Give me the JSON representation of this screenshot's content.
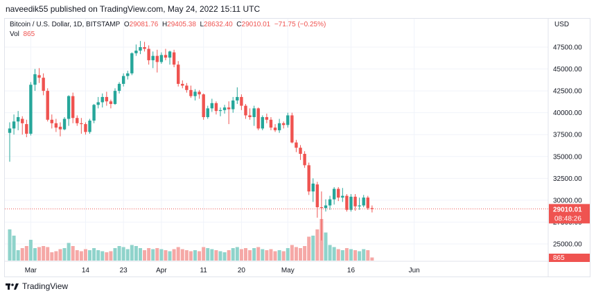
{
  "header": {
    "published_text": "naveedik55 published on TradingView.com, May 24, 2022 15:11 UTC"
  },
  "legend": {
    "symbol": "Bitcoin / U.S. Dollar, 1D, BITSTAMP",
    "open_label": "O",
    "open": "29081.76",
    "high_label": "H",
    "high": "29405.38",
    "low_label": "L",
    "low": "28632.40",
    "close_label": "C",
    "close": "29010.01",
    "change": "−71.75 (−0.25%)",
    "vol_label": "Vol",
    "vol_value": "865"
  },
  "price_axis": {
    "currency": "USD"
  },
  "price_tag": {
    "price": "29010.01",
    "countdown": "08:48:26"
  },
  "volume_tag": {
    "value": "865"
  },
  "footer": {
    "brand": "TradingView"
  },
  "colors": {
    "up": "#26a69a",
    "down": "#ef5350",
    "up_vol": "#8fd3cb",
    "down_vol": "#f5a8a6",
    "grid": "#f0f3fa"
  },
  "chart_data": {
    "type": "candlestick",
    "y_ticks": [
      "47500.00",
      "45000.00",
      "42500.00",
      "40000.00",
      "37500.00",
      "35000.00",
      "32500.00",
      "30000.00",
      "27500.00",
      "25000.00"
    ],
    "x_ticks": [
      {
        "label": "Mar",
        "index": 5
      },
      {
        "label": "14",
        "index": 18
      },
      {
        "label": "23",
        "index": 27
      },
      {
        "label": "Apr",
        "index": 36
      },
      {
        "label": "11",
        "index": 46
      },
      {
        "label": "20",
        "index": 55
      },
      {
        "label": "May",
        "index": 66
      },
      {
        "label": "16",
        "index": 81
      },
      {
        "label": "Jun",
        "index": 96
      }
    ],
    "candles": [
      {
        "o": 37700,
        "h": 38900,
        "l": 34400,
        "c": 38200,
        "v": 30
      },
      {
        "o": 38200,
        "h": 39800,
        "l": 37500,
        "c": 39000,
        "v": 24
      },
      {
        "o": 39000,
        "h": 40200,
        "l": 38000,
        "c": 39500,
        "v": 10
      },
      {
        "o": 39300,
        "h": 39600,
        "l": 37500,
        "c": 38800,
        "v": 12
      },
      {
        "o": 38700,
        "h": 39200,
        "l": 37200,
        "c": 37600,
        "v": 14
      },
      {
        "o": 37600,
        "h": 43500,
        "l": 37400,
        "c": 43200,
        "v": 20
      },
      {
        "o": 43200,
        "h": 45000,
        "l": 42500,
        "c": 44400,
        "v": 12
      },
      {
        "o": 44300,
        "h": 45100,
        "l": 43400,
        "c": 44000,
        "v": 13
      },
      {
        "o": 44000,
        "h": 44500,
        "l": 42000,
        "c": 42500,
        "v": 14
      },
      {
        "o": 42500,
        "h": 42800,
        "l": 39000,
        "c": 39200,
        "v": 13
      },
      {
        "o": 39200,
        "h": 39800,
        "l": 38200,
        "c": 38800,
        "v": 8
      },
      {
        "o": 38800,
        "h": 39300,
        "l": 37800,
        "c": 38300,
        "v": 9
      },
      {
        "o": 38400,
        "h": 38900,
        "l": 37300,
        "c": 38100,
        "v": 11
      },
      {
        "o": 38100,
        "h": 39500,
        "l": 38000,
        "c": 39300,
        "v": 12
      },
      {
        "o": 39300,
        "h": 42000,
        "l": 38500,
        "c": 41900,
        "v": 17
      },
      {
        "o": 41900,
        "h": 42300,
        "l": 38800,
        "c": 39400,
        "v": 14
      },
      {
        "o": 39400,
        "h": 39700,
        "l": 38500,
        "c": 38800,
        "v": 10
      },
      {
        "o": 38800,
        "h": 39400,
        "l": 37600,
        "c": 38700,
        "v": 9
      },
      {
        "o": 38700,
        "h": 38900,
        "l": 37500,
        "c": 37800,
        "v": 11
      },
      {
        "o": 37800,
        "h": 39300,
        "l": 37600,
        "c": 39100,
        "v": 10
      },
      {
        "o": 39100,
        "h": 41000,
        "l": 38800,
        "c": 40900,
        "v": 12
      },
      {
        "o": 40900,
        "h": 41800,
        "l": 40500,
        "c": 41200,
        "v": 10
      },
      {
        "o": 41200,
        "h": 42200,
        "l": 40600,
        "c": 41800,
        "v": 9
      },
      {
        "o": 41800,
        "h": 42400,
        "l": 40800,
        "c": 41300,
        "v": 8
      },
      {
        "o": 41300,
        "h": 41500,
        "l": 40500,
        "c": 41000,
        "v": 9
      },
      {
        "o": 41000,
        "h": 42800,
        "l": 40900,
        "c": 42500,
        "v": 12
      },
      {
        "o": 42500,
        "h": 43500,
        "l": 42200,
        "c": 43300,
        "v": 14
      },
      {
        "o": 43300,
        "h": 44500,
        "l": 43000,
        "c": 44200,
        "v": 13
      },
      {
        "o": 44200,
        "h": 44800,
        "l": 43800,
        "c": 44500,
        "v": 11
      },
      {
        "o": 44500,
        "h": 46900,
        "l": 44300,
        "c": 46800,
        "v": 15
      },
      {
        "o": 46800,
        "h": 47800,
        "l": 46500,
        "c": 47100,
        "v": 14
      },
      {
        "o": 47100,
        "h": 48200,
        "l": 46700,
        "c": 47500,
        "v": 12
      },
      {
        "o": 47500,
        "h": 48100,
        "l": 47000,
        "c": 47300,
        "v": 10
      },
      {
        "o": 47300,
        "h": 47700,
        "l": 45500,
        "c": 46000,
        "v": 12
      },
      {
        "o": 46000,
        "h": 47000,
        "l": 45100,
        "c": 46500,
        "v": 11
      },
      {
        "o": 46500,
        "h": 47200,
        "l": 44600,
        "c": 45800,
        "v": 12
      },
      {
        "o": 45800,
        "h": 46900,
        "l": 45600,
        "c": 46600,
        "v": 11
      },
      {
        "o": 46600,
        "h": 47300,
        "l": 46000,
        "c": 46300,
        "v": 10
      },
      {
        "o": 46300,
        "h": 47100,
        "l": 45500,
        "c": 47000,
        "v": 9
      },
      {
        "o": 46900,
        "h": 47200,
        "l": 45200,
        "c": 45500,
        "v": 11
      },
      {
        "o": 45500,
        "h": 45900,
        "l": 43000,
        "c": 43300,
        "v": 13
      },
      {
        "o": 43300,
        "h": 43700,
        "l": 42800,
        "c": 43100,
        "v": 11
      },
      {
        "o": 43100,
        "h": 43400,
        "l": 42300,
        "c": 42600,
        "v": 10
      },
      {
        "o": 42600,
        "h": 43100,
        "l": 41700,
        "c": 41900,
        "v": 9
      },
      {
        "o": 41900,
        "h": 42700,
        "l": 41400,
        "c": 42400,
        "v": 10
      },
      {
        "o": 42400,
        "h": 42600,
        "l": 41600,
        "c": 42100,
        "v": 9
      },
      {
        "o": 42100,
        "h": 42200,
        "l": 39200,
        "c": 39500,
        "v": 13
      },
      {
        "o": 39500,
        "h": 40800,
        "l": 39300,
        "c": 40500,
        "v": 12
      },
      {
        "o": 40500,
        "h": 41600,
        "l": 40100,
        "c": 41100,
        "v": 11
      },
      {
        "o": 41100,
        "h": 41300,
        "l": 39800,
        "c": 40200,
        "v": 10
      },
      {
        "o": 40200,
        "h": 40600,
        "l": 39600,
        "c": 40300,
        "v": 9
      },
      {
        "o": 40300,
        "h": 40900,
        "l": 39900,
        "c": 40600,
        "v": 8
      },
      {
        "o": 40600,
        "h": 41300,
        "l": 38700,
        "c": 40400,
        "v": 10
      },
      {
        "o": 40400,
        "h": 41800,
        "l": 40000,
        "c": 41400,
        "v": 12
      },
      {
        "o": 41400,
        "h": 42900,
        "l": 41000,
        "c": 41800,
        "v": 13
      },
      {
        "o": 41800,
        "h": 42100,
        "l": 40300,
        "c": 40800,
        "v": 11
      },
      {
        "o": 40800,
        "h": 41000,
        "l": 39300,
        "c": 39700,
        "v": 12
      },
      {
        "o": 39700,
        "h": 40500,
        "l": 39200,
        "c": 39500,
        "v": 10
      },
      {
        "o": 39500,
        "h": 40800,
        "l": 38500,
        "c": 40500,
        "v": 12
      },
      {
        "o": 40500,
        "h": 40600,
        "l": 38000,
        "c": 38200,
        "v": 13
      },
      {
        "o": 38200,
        "h": 39700,
        "l": 38000,
        "c": 39500,
        "v": 11
      },
      {
        "o": 39500,
        "h": 39900,
        "l": 38800,
        "c": 39200,
        "v": 10
      },
      {
        "o": 39200,
        "h": 39500,
        "l": 38000,
        "c": 38300,
        "v": 11
      },
      {
        "o": 38300,
        "h": 38700,
        "l": 37800,
        "c": 38000,
        "v": 9
      },
      {
        "o": 38000,
        "h": 39300,
        "l": 37700,
        "c": 38800,
        "v": 10
      },
      {
        "o": 38800,
        "h": 39000,
        "l": 38200,
        "c": 38600,
        "v": 9
      },
      {
        "o": 38600,
        "h": 40000,
        "l": 38300,
        "c": 39700,
        "v": 12
      },
      {
        "o": 39700,
        "h": 40000,
        "l": 36500,
        "c": 36600,
        "v": 15
      },
      {
        "o": 36600,
        "h": 36900,
        "l": 35500,
        "c": 36000,
        "v": 13
      },
      {
        "o": 36000,
        "h": 36300,
        "l": 34600,
        "c": 35300,
        "v": 12
      },
      {
        "o": 35300,
        "h": 35600,
        "l": 33700,
        "c": 34000,
        "v": 14
      },
      {
        "o": 34000,
        "h": 34300,
        "l": 30600,
        "c": 31000,
        "v": 23
      },
      {
        "o": 31000,
        "h": 32500,
        "l": 29800,
        "c": 31900,
        "v": 24
      },
      {
        "o": 31800,
        "h": 32100,
        "l": 28000,
        "c": 29200,
        "v": 30
      },
      {
        "o": 29200,
        "h": 31000,
        "l": 25400,
        "c": 29100,
        "v": 40
      },
      {
        "o": 29100,
        "h": 30100,
        "l": 28700,
        "c": 29400,
        "v": 27
      },
      {
        "o": 29400,
        "h": 30500,
        "l": 28900,
        "c": 30100,
        "v": 15
      },
      {
        "o": 30100,
        "h": 31500,
        "l": 29500,
        "c": 31300,
        "v": 13
      },
      {
        "o": 31300,
        "h": 31500,
        "l": 29900,
        "c": 30300,
        "v": 11
      },
      {
        "o": 30300,
        "h": 31400,
        "l": 29800,
        "c": 30500,
        "v": 10
      },
      {
        "o": 30500,
        "h": 30700,
        "l": 28700,
        "c": 28900,
        "v": 12
      },
      {
        "o": 28900,
        "h": 30700,
        "l": 28700,
        "c": 30400,
        "v": 11
      },
      {
        "o": 30400,
        "h": 30700,
        "l": 28800,
        "c": 29300,
        "v": 10
      },
      {
        "o": 29300,
        "h": 30300,
        "l": 28900,
        "c": 29400,
        "v": 9
      },
      {
        "o": 29400,
        "h": 30600,
        "l": 29200,
        "c": 30300,
        "v": 11
      },
      {
        "o": 30300,
        "h": 30500,
        "l": 28900,
        "c": 29100,
        "v": 10
      },
      {
        "o": 29100,
        "h": 29400,
        "l": 28600,
        "c": 29000,
        "v": 3
      }
    ]
  }
}
